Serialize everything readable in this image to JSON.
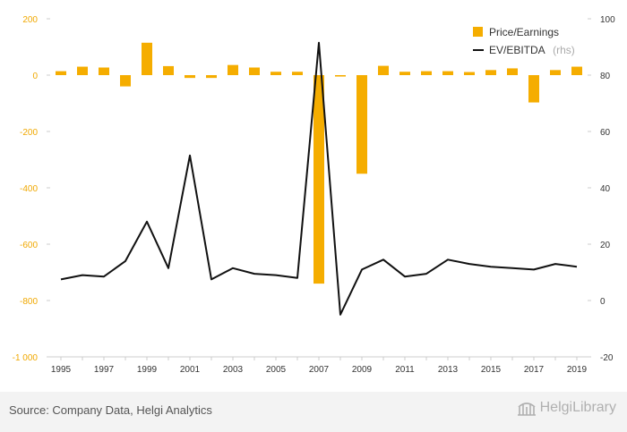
{
  "chart_data": {
    "type": "bar+line",
    "x": [
      1995,
      1996,
      1997,
      1998,
      1999,
      2000,
      2001,
      2002,
      2003,
      2004,
      2005,
      2006,
      2007,
      2008,
      2009,
      2010,
      2011,
      2012,
      2013,
      2014,
      2015,
      2016,
      2017,
      2018,
      2019
    ],
    "x_tick_labels": [
      "1995",
      "1997",
      "1999",
      "2001",
      "2003",
      "2005",
      "2007",
      "2009",
      "2011",
      "2013",
      "2015",
      "2017",
      "2019"
    ],
    "series": [
      {
        "name": "Price/Earnings",
        "type": "bar",
        "axis": "left",
        "color": "#f5ad00",
        "values": [
          14,
          30,
          27,
          -40,
          115,
          32,
          -10,
          -10,
          36,
          27,
          12,
          12,
          -740,
          -5,
          -350,
          33,
          12,
          14,
          14,
          11,
          18,
          24,
          -97,
          18,
          30
        ]
      },
      {
        "name": "EV/EBITDA",
        "name_suffix": "(rhs)",
        "type": "line",
        "axis": "right",
        "color": "#111111",
        "values": [
          7.5,
          9,
          8.5,
          14,
          28,
          11.5,
          51.5,
          7.5,
          11.5,
          9.5,
          9,
          8,
          91.5,
          -5,
          11,
          14.5,
          8.5,
          9.5,
          14.5,
          13,
          12,
          11.5,
          11,
          13,
          12
        ]
      }
    ],
    "y_left": {
      "min": -1000,
      "max": 200,
      "ticks": [
        200,
        0,
        -200,
        -400,
        -600,
        -800,
        -1000
      ],
      "tick_labels": [
        "200",
        "0",
        "-200",
        "-400",
        "-600",
        "-800",
        "-1 000"
      ]
    },
    "y_right": {
      "min": -20,
      "max": 100,
      "ticks": [
        100,
        80,
        60,
        40,
        20,
        0,
        -20
      ],
      "tick_labels": [
        "100",
        "80",
        "60",
        "40",
        "20",
        "0",
        "-20"
      ]
    },
    "legend_position": "top-right",
    "grid": false
  },
  "footer": {
    "source": "Source: Company Data, Helgi Analytics",
    "brand": "HelgiLibrary"
  },
  "colors": {
    "accent": "#f5ad00",
    "line": "#111111",
    "footer_bg": "#f3f3f3"
  }
}
